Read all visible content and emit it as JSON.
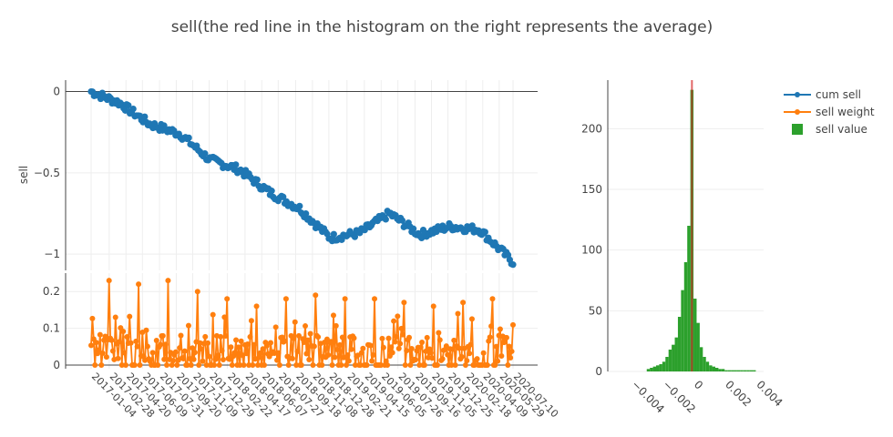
{
  "title": "sell(the red line in the histogram on the right represents the average)",
  "colors": {
    "cum": "#1f77b4",
    "weight": "#ff7f0e",
    "value": "#2ca02c",
    "mean_line": "#d62728",
    "axis_text": "#444444",
    "grid": "#eeeeee",
    "zero": "#444444"
  },
  "legend": {
    "cum_sell": "cum sell",
    "sell_weight": "sell weight",
    "sell_value": "sell value"
  },
  "chart_data": [
    {
      "type": "scatter",
      "name": "cum sell",
      "ylabel": "sell",
      "ylim": [
        -1.1,
        0.07
      ],
      "yticks": [
        0,
        -0.5,
        -1
      ],
      "ytick_labels": [
        "0",
        "−0.5",
        "−1"
      ],
      "x_start": "2017-01-04",
      "x_end": "2020-07-10",
      "grid": true,
      "x": [
        "2017-01-04",
        "2017-04-01",
        "2017-07-01",
        "2017-10-01",
        "2018-01-01",
        "2018-04-01",
        "2018-07-01",
        "2018-10-01",
        "2019-01-01",
        "2019-04-01",
        "2019-07-01",
        "2019-10-01",
        "2020-01-01",
        "2020-04-01",
        "2020-07-10"
      ],
      "y": [
        0,
        -0.07,
        -0.2,
        -0.26,
        -0.42,
        -0.48,
        -0.62,
        -0.72,
        -0.9,
        -0.87,
        -0.75,
        -0.88,
        -0.83,
        -0.85,
        -1.05
      ]
    },
    {
      "type": "line",
      "name": "sell weight",
      "ylim": [
        -0.01,
        0.25
      ],
      "yticks": [
        0,
        0.1,
        0.2
      ],
      "ytick_labels": [
        "0",
        "0.1",
        "0.2"
      ],
      "peaks": [
        0.23,
        0.22,
        0.23,
        0.2,
        0.18,
        0.16,
        0.18,
        0.19,
        0.18,
        0.18,
        0.17,
        0.16,
        0.17,
        0.18
      ]
    },
    {
      "type": "histogram",
      "name": "sell value",
      "xlim": [
        -0.0055,
        0.0045
      ],
      "ylim": [
        0,
        240
      ],
      "xticks": [
        -0.004,
        -0.002,
        0,
        0.002,
        0.004
      ],
      "xtick_labels": [
        "−0.004",
        "−0.002",
        "0",
        "0.002",
        "0.004"
      ],
      "yticks": [
        0,
        50,
        100,
        150,
        200
      ],
      "mean": -0.0001,
      "bins_start": -0.003,
      "bin_width": 0.0002,
      "counts": [
        2,
        3,
        4,
        5,
        6,
        8,
        12,
        18,
        22,
        28,
        45,
        67,
        90,
        120,
        232,
        60,
        40,
        20,
        12,
        8,
        5,
        4,
        3,
        2,
        2,
        1,
        1,
        1,
        1,
        1,
        1,
        1,
        1,
        1,
        1
      ],
      "mean_label": "average"
    }
  ],
  "x_tick_labels": [
    "2017-01-04",
    "2017-02-28",
    "2017-04-20",
    "2017-06-09",
    "2017-07-31",
    "2017-09-20",
    "2017-11-09",
    "2017-12-29",
    "2018-02-22",
    "2018-04-17",
    "2018-06-07",
    "2018-07-27",
    "2018-09-18",
    "2018-11-08",
    "2018-12-28",
    "2019-02-21",
    "2019-04-15",
    "2019-06-05",
    "2019-07-26",
    "2019-09-16",
    "2019-11-05",
    "2019-12-25",
    "2020-02-18",
    "2020-04-09",
    "2020-05-29",
    "2020-07-10"
  ]
}
